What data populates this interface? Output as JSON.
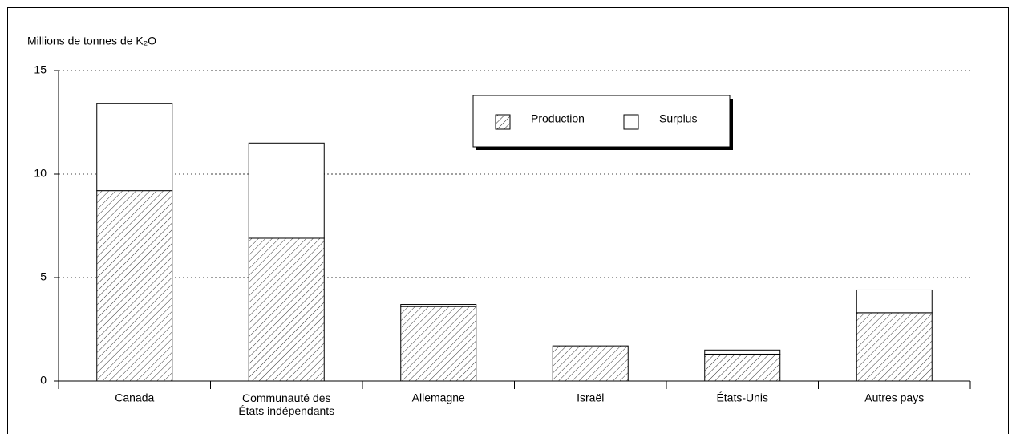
{
  "chart_data": {
    "type": "stacked_bar",
    "y_label": "Millions de tonnes de K₂O",
    "categories": [
      "Canada",
      "Communauté des\nÉtats indépendants",
      "Allemagne",
      "Israël",
      "États-Unis",
      "Autres pays"
    ],
    "series": [
      {
        "name": "Production",
        "color": "#000000",
        "hatch": true,
        "values": [
          9.2,
          6.9,
          3.6,
          1.7,
          1.3,
          3.3
        ]
      },
      {
        "name": "Surplus",
        "color": "#000000",
        "hatch": false,
        "values": [
          4.2,
          4.6,
          0.1,
          0,
          0.2,
          1.1
        ]
      }
    ],
    "ylim": [
      0,
      15
    ],
    "yticks": [
      0,
      5,
      10,
      15
    ],
    "grid": true,
    "legend": "top-center"
  }
}
